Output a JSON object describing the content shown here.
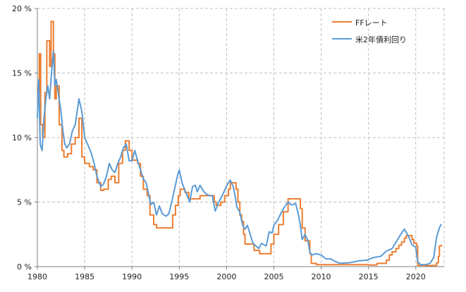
{
  "chart_data": {
    "type": "line",
    "title": "",
    "xlabel": "",
    "ylabel": "",
    "xlim": [
      1980,
      2023
    ],
    "ylim": [
      0,
      20
    ],
    "grid": true,
    "legend_position": "top-right",
    "x_ticks": [
      1980,
      1985,
      1990,
      1995,
      2000,
      2005,
      2010,
      2015,
      2020
    ],
    "x_tick_labels": [
      "1980",
      "1985",
      "1990",
      "1995",
      "2000",
      "2005",
      "2010",
      "2015",
      "2020"
    ],
    "y_ticks": [
      0,
      5,
      10,
      15,
      20
    ],
    "y_tick_labels": [
      "0 %",
      "5 %",
      "10 %",
      "15 %",
      "20 %"
    ],
    "series": [
      {
        "name": "FFレート",
        "color": "#ED7D31",
        "points": [
          [
            1980.0,
            13.5
          ],
          [
            1980.2,
            16.5
          ],
          [
            1980.35,
            11.0
          ],
          [
            1980.55,
            10.0
          ],
          [
            1980.8,
            13.5
          ],
          [
            1981.0,
            17.5
          ],
          [
            1981.3,
            15.5
          ],
          [
            1981.45,
            19.0
          ],
          [
            1981.7,
            16.5
          ],
          [
            1981.85,
            13.0
          ],
          [
            1982.0,
            14.0
          ],
          [
            1982.3,
            11.0
          ],
          [
            1982.6,
            9.0
          ],
          [
            1982.8,
            8.5
          ],
          [
            1983.2,
            8.75
          ],
          [
            1983.6,
            9.5
          ],
          [
            1984.0,
            10.0
          ],
          [
            1984.4,
            11.5
          ],
          [
            1984.7,
            8.5
          ],
          [
            1985.0,
            8.0
          ],
          [
            1985.5,
            7.75
          ],
          [
            1985.9,
            7.5
          ],
          [
            1986.3,
            6.5
          ],
          [
            1986.7,
            5.9
          ],
          [
            1987.0,
            6.0
          ],
          [
            1987.5,
            6.75
          ],
          [
            1987.8,
            7.0
          ],
          [
            1988.2,
            6.5
          ],
          [
            1988.6,
            8.0
          ],
          [
            1989.0,
            9.0
          ],
          [
            1989.3,
            9.75
          ],
          [
            1989.7,
            9.0
          ],
          [
            1990.0,
            8.25
          ],
          [
            1990.6,
            8.0
          ],
          [
            1990.9,
            7.0
          ],
          [
            1991.2,
            6.0
          ],
          [
            1991.6,
            5.5
          ],
          [
            1991.9,
            4.0
          ],
          [
            1992.3,
            3.25
          ],
          [
            1992.6,
            3.0
          ],
          [
            1993.0,
            3.0
          ],
          [
            1993.5,
            3.0
          ],
          [
            1994.0,
            3.0
          ],
          [
            1994.3,
            4.0
          ],
          [
            1994.6,
            4.75
          ],
          [
            1994.9,
            5.5
          ],
          [
            1995.1,
            6.0
          ],
          [
            1995.6,
            5.75
          ],
          [
            1996.0,
            5.25
          ],
          [
            1997.2,
            5.5
          ],
          [
            1998.7,
            5.0
          ],
          [
            1998.9,
            4.75
          ],
          [
            1999.4,
            5.0
          ],
          [
            1999.8,
            5.5
          ],
          [
            2000.2,
            6.0
          ],
          [
            2000.4,
            6.5
          ],
          [
            2001.0,
            6.0
          ],
          [
            2001.2,
            5.0
          ],
          [
            2001.4,
            4.0
          ],
          [
            2001.6,
            3.5
          ],
          [
            2001.8,
            2.5
          ],
          [
            2001.95,
            1.75
          ],
          [
            2002.9,
            1.25
          ],
          [
            2003.5,
            1.0
          ],
          [
            2004.4,
            1.0
          ],
          [
            2004.7,
            1.75
          ],
          [
            2005.0,
            2.5
          ],
          [
            2005.5,
            3.25
          ],
          [
            2006.0,
            4.25
          ],
          [
            2006.5,
            5.25
          ],
          [
            2007.6,
            5.25
          ],
          [
            2007.8,
            4.5
          ],
          [
            2008.0,
            3.0
          ],
          [
            2008.3,
            2.0
          ],
          [
            2008.8,
            1.0
          ],
          [
            2008.95,
            0.25
          ],
          [
            2009.5,
            0.15
          ],
          [
            2012.0,
            0.15
          ],
          [
            2015.0,
            0.12
          ],
          [
            2015.9,
            0.25
          ],
          [
            2016.9,
            0.5
          ],
          [
            2017.2,
            0.9
          ],
          [
            2017.5,
            1.15
          ],
          [
            2017.9,
            1.4
          ],
          [
            2018.2,
            1.65
          ],
          [
            2018.5,
            1.9
          ],
          [
            2018.8,
            2.2
          ],
          [
            2019.0,
            2.4
          ],
          [
            2019.5,
            2.4
          ],
          [
            2019.6,
            2.1
          ],
          [
            2019.8,
            1.8
          ],
          [
            2020.1,
            1.6
          ],
          [
            2020.2,
            0.1
          ],
          [
            2021.0,
            0.08
          ],
          [
            2022.0,
            0.08
          ],
          [
            2022.2,
            0.3
          ],
          [
            2022.4,
            0.8
          ],
          [
            2022.5,
            1.6
          ],
          [
            2022.7,
            1.7
          ]
        ]
      },
      {
        "name": "米2年債利回り",
        "color": "#5B9BD5",
        "points": [
          [
            1980.0,
            11.5
          ],
          [
            1980.15,
            14.5
          ],
          [
            1980.3,
            9.5
          ],
          [
            1980.5,
            9.0
          ],
          [
            1980.7,
            11.5
          ],
          [
            1980.9,
            13.0
          ],
          [
            1981.1,
            14.0
          ],
          [
            1981.3,
            13.0
          ],
          [
            1981.5,
            15.0
          ],
          [
            1981.7,
            16.7
          ],
          [
            1981.85,
            14.0
          ],
          [
            1982.0,
            14.5
          ],
          [
            1982.2,
            13.5
          ],
          [
            1982.5,
            12.0
          ],
          [
            1982.7,
            10.5
          ],
          [
            1982.9,
            9.5
          ],
          [
            1983.1,
            9.2
          ],
          [
            1983.4,
            9.5
          ],
          [
            1983.7,
            10.5
          ],
          [
            1984.0,
            11.0
          ],
          [
            1984.4,
            13.0
          ],
          [
            1984.7,
            12.0
          ],
          [
            1985.0,
            10.0
          ],
          [
            1985.3,
            9.5
          ],
          [
            1985.7,
            8.8
          ],
          [
            1986.0,
            8.0
          ],
          [
            1986.3,
            7.0
          ],
          [
            1986.7,
            6.2
          ],
          [
            1987.0,
            6.4
          ],
          [
            1987.3,
            7.0
          ],
          [
            1987.6,
            8.0
          ],
          [
            1987.9,
            7.5
          ],
          [
            1988.2,
            7.3
          ],
          [
            1988.5,
            8.0
          ],
          [
            1988.8,
            8.5
          ],
          [
            1989.1,
            9.2
          ],
          [
            1989.4,
            9.5
          ],
          [
            1989.7,
            8.2
          ],
          [
            1990.0,
            8.2
          ],
          [
            1990.3,
            9.0
          ],
          [
            1990.6,
            8.2
          ],
          [
            1990.9,
            7.5
          ],
          [
            1991.2,
            6.8
          ],
          [
            1991.5,
            6.5
          ],
          [
            1991.8,
            5.5
          ],
          [
            1992.0,
            4.8
          ],
          [
            1992.3,
            5.0
          ],
          [
            1992.6,
            4.0
          ],
          [
            1992.9,
            4.7
          ],
          [
            1993.2,
            4.1
          ],
          [
            1993.6,
            3.9
          ],
          [
            1993.9,
            4.1
          ],
          [
            1994.2,
            5.0
          ],
          [
            1994.5,
            6.0
          ],
          [
            1994.8,
            7.0
          ],
          [
            1995.0,
            7.5
          ],
          [
            1995.3,
            6.5
          ],
          [
            1995.6,
            5.9
          ],
          [
            1995.9,
            5.4
          ],
          [
            1996.1,
            5.0
          ],
          [
            1996.4,
            6.2
          ],
          [
            1996.7,
            6.3
          ],
          [
            1996.9,
            5.8
          ],
          [
            1997.2,
            6.3
          ],
          [
            1997.6,
            5.8
          ],
          [
            1997.9,
            5.6
          ],
          [
            1998.2,
            5.5
          ],
          [
            1998.5,
            5.5
          ],
          [
            1998.8,
            4.3
          ],
          [
            1999.1,
            4.9
          ],
          [
            1999.4,
            5.3
          ],
          [
            1999.8,
            5.9
          ],
          [
            2000.1,
            6.4
          ],
          [
            2000.4,
            6.7
          ],
          [
            2000.7,
            6.2
          ],
          [
            2000.9,
            5.5
          ],
          [
            2001.1,
            4.6
          ],
          [
            2001.4,
            4.2
          ],
          [
            2001.7,
            3.2
          ],
          [
            2001.95,
            2.9
          ],
          [
            2002.2,
            3.2
          ],
          [
            2002.5,
            2.5
          ],
          [
            2002.8,
            1.8
          ],
          [
            2003.1,
            1.6
          ],
          [
            2003.4,
            1.4
          ],
          [
            2003.7,
            1.8
          ],
          [
            2003.95,
            1.7
          ],
          [
            2004.2,
            1.6
          ],
          [
            2004.5,
            2.7
          ],
          [
            2004.8,
            2.6
          ],
          [
            2005.0,
            3.2
          ],
          [
            2005.4,
            3.6
          ],
          [
            2005.8,
            4.2
          ],
          [
            2006.1,
            4.6
          ],
          [
            2006.5,
            5.0
          ],
          [
            2006.8,
            4.8
          ],
          [
            2007.0,
            4.8
          ],
          [
            2007.3,
            4.9
          ],
          [
            2007.6,
            4.0
          ],
          [
            2007.8,
            3.2
          ],
          [
            2008.0,
            2.1
          ],
          [
            2008.3,
            2.5
          ],
          [
            2008.6,
            2.0
          ],
          [
            2008.8,
            1.1
          ],
          [
            2009.0,
            0.9
          ],
          [
            2009.5,
            1.0
          ],
          [
            2010.0,
            0.9
          ],
          [
            2010.5,
            0.6
          ],
          [
            2011.0,
            0.6
          ],
          [
            2011.5,
            0.4
          ],
          [
            2012.0,
            0.25
          ],
          [
            2013.0,
            0.3
          ],
          [
            2014.0,
            0.45
          ],
          [
            2014.8,
            0.5
          ],
          [
            2015.5,
            0.7
          ],
          [
            2016.3,
            0.8
          ],
          [
            2016.9,
            1.2
          ],
          [
            2017.5,
            1.4
          ],
          [
            2018.0,
            2.0
          ],
          [
            2018.5,
            2.6
          ],
          [
            2018.8,
            2.9
          ],
          [
            2019.2,
            2.4
          ],
          [
            2019.6,
            1.7
          ],
          [
            2020.0,
            1.5
          ],
          [
            2020.2,
            0.4
          ],
          [
            2020.5,
            0.15
          ],
          [
            2021.0,
            0.15
          ],
          [
            2021.5,
            0.25
          ],
          [
            2021.9,
            0.7
          ],
          [
            2022.2,
            2.3
          ],
          [
            2022.5,
            3.0
          ],
          [
            2022.7,
            3.3
          ]
        ]
      }
    ]
  }
}
